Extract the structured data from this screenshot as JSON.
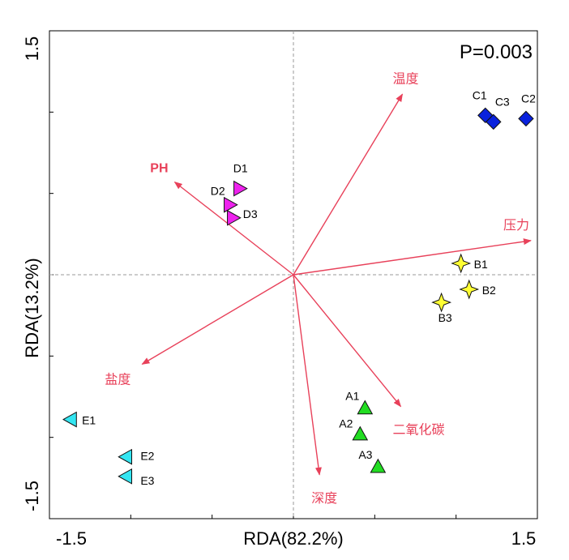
{
  "chart_data": {
    "type": "scatter",
    "title": "",
    "annotation": "P=0.003",
    "xlabel": "RDA(82.2%)",
    "ylabel": "RDA(13.2%)",
    "xlim": [
      -1.5,
      1.5
    ],
    "ylim": [
      -1.5,
      1.5
    ],
    "xticks": [
      "-1.5",
      "1.5"
    ],
    "yticks": [
      "1.5",
      "-1.5"
    ],
    "grid": false,
    "zero_lines": true,
    "arrow_color": "#e8415a",
    "env_arrows": [
      {
        "name": "温度",
        "x": 0.67,
        "y": 1.11
      },
      {
        "name": "PH",
        "x": -0.73,
        "y": 0.57
      },
      {
        "name": "压力",
        "x": 1.46,
        "y": 0.21
      },
      {
        "name": "盐度",
        "x": -0.93,
        "y": -0.55
      },
      {
        "name": "二氧化碳",
        "x": 0.66,
        "y": -0.81
      },
      {
        "name": "深度",
        "x": 0.16,
        "y": -1.23
      }
    ],
    "groups": [
      {
        "name": "A",
        "marker": "triangle-up",
        "color": "#22dd22",
        "points": [
          {
            "label": "A1",
            "x": 0.44,
            "y": -0.82
          },
          {
            "label": "A2",
            "x": 0.41,
            "y": -0.98
          },
          {
            "label": "A3",
            "x": 0.52,
            "y": -1.18
          }
        ]
      },
      {
        "name": "B",
        "marker": "star4",
        "color": "#ffff33",
        "points": [
          {
            "label": "B1",
            "x": 1.03,
            "y": 0.07
          },
          {
            "label": "B2",
            "x": 1.08,
            "y": -0.09
          },
          {
            "label": "B3",
            "x": 0.91,
            "y": -0.17
          }
        ]
      },
      {
        "name": "C",
        "marker": "diamond",
        "color": "#0a22dd",
        "points": [
          {
            "label": "C1",
            "x": 1.18,
            "y": 0.98
          },
          {
            "label": "C3",
            "x": 1.23,
            "y": 0.94
          },
          {
            "label": "C2",
            "x": 1.43,
            "y": 0.96
          }
        ]
      },
      {
        "name": "D",
        "marker": "triangle-right",
        "color": "#ee22ee",
        "points": [
          {
            "label": "D1",
            "x": -0.33,
            "y": 0.53
          },
          {
            "label": "D2",
            "x": -0.39,
            "y": 0.43
          },
          {
            "label": "D3",
            "x": -0.37,
            "y": 0.35
          }
        ]
      },
      {
        "name": "E",
        "marker": "triangle-left",
        "color": "#33e6f2",
        "points": [
          {
            "label": "E1",
            "x": -1.37,
            "y": -0.89
          },
          {
            "label": "E2",
            "x": -1.03,
            "y": -1.12
          },
          {
            "label": "E3",
            "x": -1.03,
            "y": -1.24
          }
        ]
      }
    ]
  }
}
